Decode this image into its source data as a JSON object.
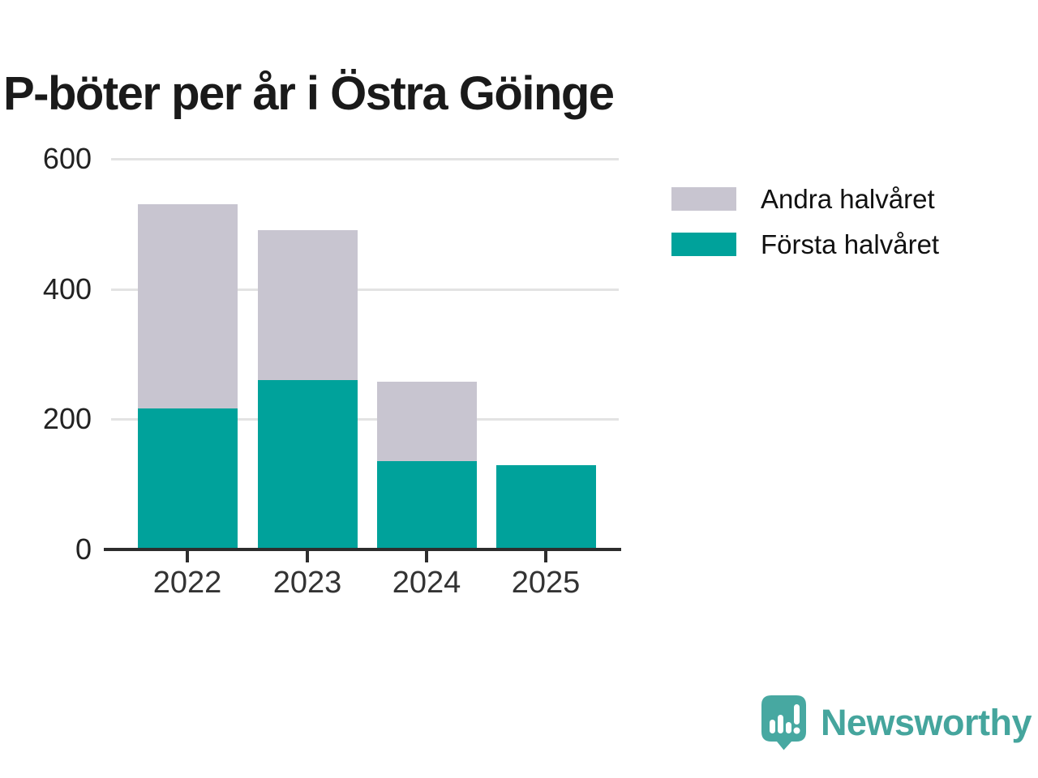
{
  "title": "P-böter per år i Östra Göinge",
  "legend": [
    {
      "label": "Andra halvåret",
      "color": "#c8c5d0"
    },
    {
      "label": "Första halvåret",
      "color": "#00a29b"
    }
  ],
  "chart_data": {
    "type": "bar",
    "stacked": true,
    "title": "P-böter per år i Östra Göinge",
    "categories": [
      "2022",
      "2023",
      "2024",
      "2025"
    ],
    "series": [
      {
        "name": "Första halvåret",
        "color": "#00a29b",
        "values": [
          216,
          260,
          136,
          130
        ]
      },
      {
        "name": "Andra halvåret",
        "color": "#c8c5d0",
        "values": [
          314,
          230,
          122,
          0
        ]
      }
    ],
    "totals": [
      530,
      490,
      258,
      130
    ],
    "ylim": [
      0,
      600
    ],
    "yticks": [
      0,
      200,
      400,
      600
    ],
    "grid": true,
    "legend_position": "top-right",
    "xlabel": "",
    "ylabel": ""
  },
  "branding": {
    "name": "Newsworthy",
    "color": "#45a59d",
    "icon": "newsworthy-speech-bubble-chart-icon"
  }
}
